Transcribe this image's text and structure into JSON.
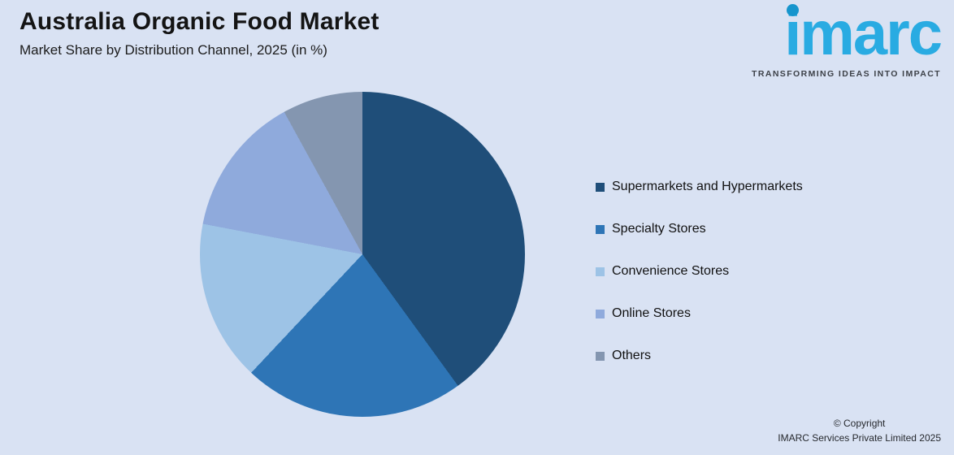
{
  "header": {
    "title": "Australia Organic Food Market",
    "subtitle": "Market Share by Distribution Channel, 2025 (in %)"
  },
  "logo": {
    "text": "imarc",
    "tagline": "TRANSFORMING IDEAS INTO IMPACT",
    "text_color": "#29abe2",
    "dot_color": "#1695cd"
  },
  "chart_data": {
    "type": "pie",
    "title": "Australia Organic Food Market",
    "subtitle": "Market Share by Distribution Channel, 2025 (in %)",
    "labels": [
      "Supermarkets and Hypermarkets",
      "Specialty Stores",
      "Convenience Stores",
      "Online Stores",
      "Others"
    ],
    "values": [
      40,
      22,
      16,
      14,
      8
    ],
    "colors": [
      "#1f4e79",
      "#2e75b6",
      "#9dc3e6",
      "#8faadc",
      "#8496b0"
    ],
    "legend_position": "right",
    "start_angle_deg": 0,
    "direction": "clockwise",
    "data_labels_shown": false
  },
  "footer": {
    "line1": "© Copyright",
    "line2": "IMARC Services Private Limited 2025"
  },
  "theme": {
    "background": "#d9e2f3"
  }
}
